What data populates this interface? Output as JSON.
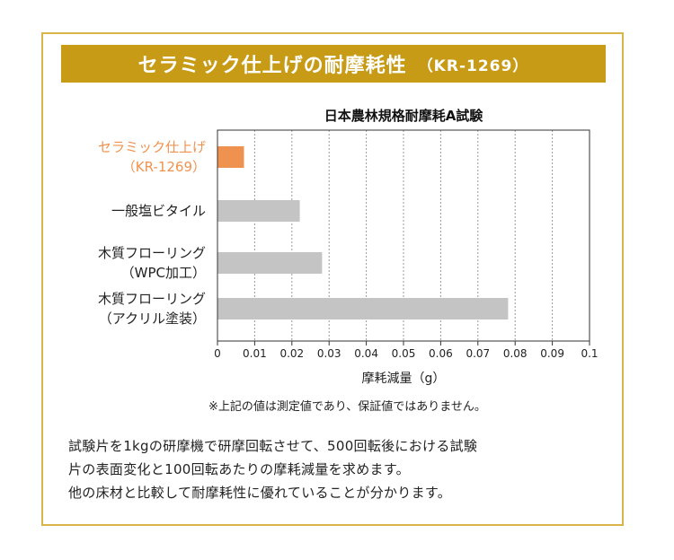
{
  "header": {
    "title": "セラミック仕上げの耐摩耗性",
    "code": "（KR-1269）"
  },
  "colors": {
    "banner": "#c79b15",
    "frame": "#d8b449",
    "highlight": "#f0924f",
    "bar": "#c4c4c4"
  },
  "note": "※上記の値は測定値であり、保証値ではありません。",
  "description": [
    "試験片を1kgの研摩機で研摩回転させて、500回転後における試験",
    "片の表面変化と100回転あたりの摩耗減量を求めます。",
    "他の床材と比較して耐摩耗性に優れていることが分かります。"
  ],
  "chart_data": {
    "type": "bar",
    "orientation": "horizontal",
    "title": "日本農林規格耐摩耗A試験",
    "xlabel": "摩耗減量（g）",
    "ylabel": "",
    "xlim": [
      0,
      0.1
    ],
    "grid": "vertical-dashed",
    "categories": [
      [
        "セラミック仕上げ",
        "（KR-1269）"
      ],
      [
        "一般塩ビタイル"
      ],
      [
        "木質フローリング",
        "（WPC加工）"
      ],
      [
        "木質フローリング",
        "（アクリル塗装）"
      ]
    ],
    "values": [
      0.007,
      0.022,
      0.028,
      0.078
    ],
    "highlight_index": 0,
    "ticks": [
      "0",
      "0.01",
      "0.02",
      "0.03",
      "0.04",
      "0.05",
      "0.06",
      "0.07",
      "0.08",
      "0.09",
      "0.1"
    ]
  }
}
